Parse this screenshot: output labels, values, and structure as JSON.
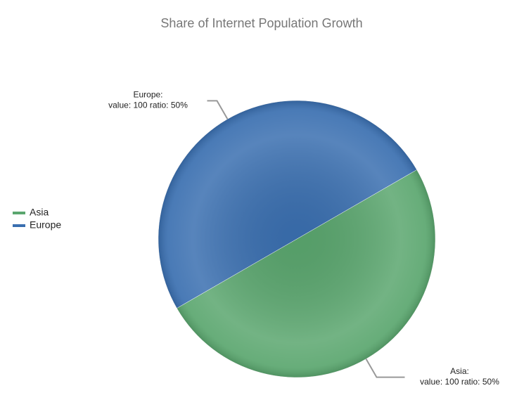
{
  "chart_data": {
    "type": "pie",
    "title": "Share of Internet Population Growth",
    "categories": [
      "Asia",
      "Europe"
    ],
    "slice_labels": [
      "Asia:",
      "Europe:"
    ],
    "values": [
      100,
      100
    ],
    "value_labels": [
      "value: 100 ratio: 50%",
      "value: 100 ratio: 50%"
    ],
    "colors": [
      "#5aa66e",
      "#3a6fb0"
    ],
    "legend": "left"
  }
}
